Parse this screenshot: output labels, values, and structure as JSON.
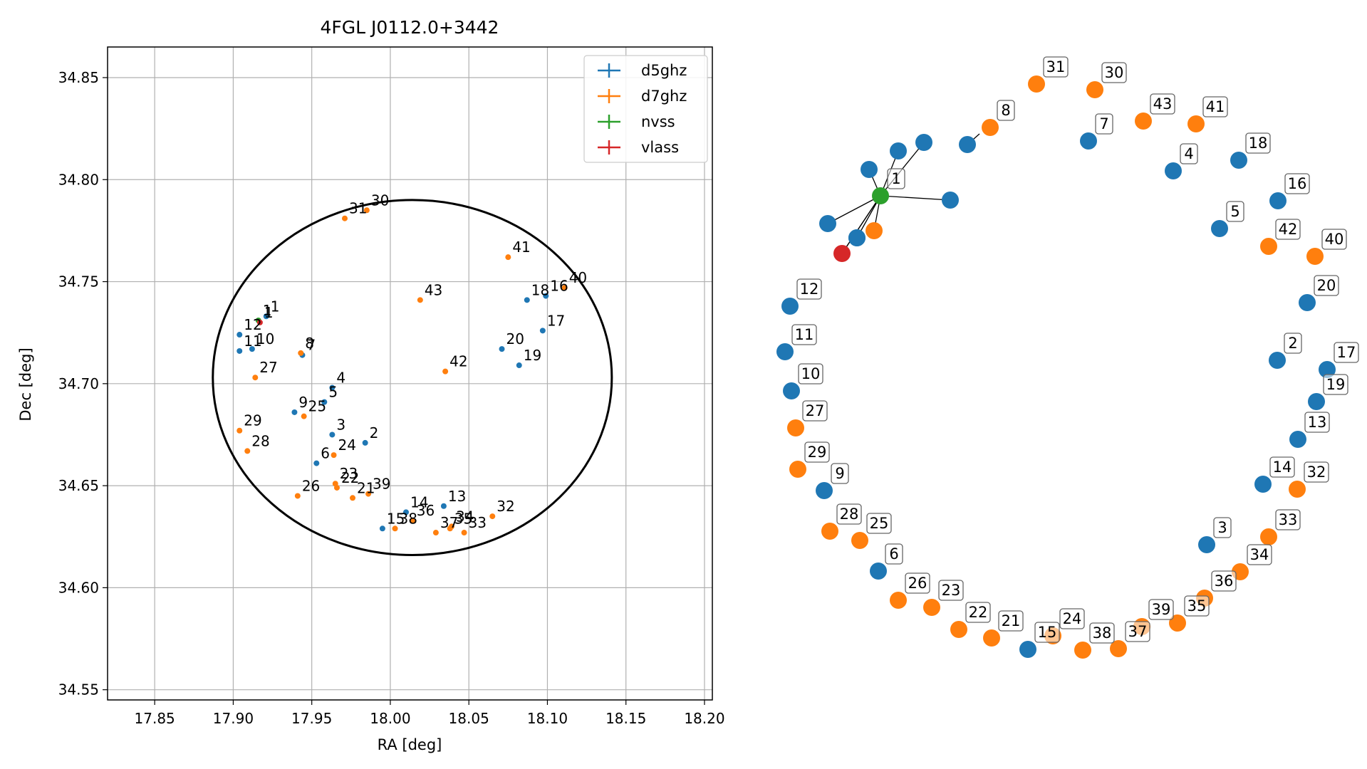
{
  "chart_data": [
    {
      "type": "scatter",
      "title": "4FGL J0112.0+3442",
      "xlabel": "RA [deg]",
      "ylabel": "Dec [deg]",
      "xlim": [
        17.82,
        18.205
      ],
      "ylim": [
        34.545,
        34.865
      ],
      "xticks": [
        "17.85",
        "17.90",
        "17.95",
        "18.00",
        "18.05",
        "18.10",
        "18.15",
        "18.20"
      ],
      "xtick_values": [
        17.85,
        17.9,
        17.95,
        18.0,
        18.05,
        18.1,
        18.15,
        18.2
      ],
      "yticks": [
        "34.55",
        "34.60",
        "34.65",
        "34.70",
        "34.75",
        "34.80",
        "34.85"
      ],
      "ytick_values": [
        34.55,
        34.6,
        34.65,
        34.7,
        34.75,
        34.8,
        34.85
      ],
      "grid": true,
      "legend_position": "top-right",
      "error_ellipse": {
        "center": [
          18.014,
          34.703
        ],
        "ra_semi_axis": 0.127,
        "dec_semi_axis": 0.087,
        "color": "#000000"
      },
      "series": [
        {
          "name": "d5ghz",
          "color": "#1f77b4",
          "points": [
            {
              "label": "1",
              "x": 17.921,
              "y": 34.733
            },
            {
              "label": "2",
              "x": 17.984,
              "y": 34.671
            },
            {
              "label": "3",
              "x": 17.963,
              "y": 34.675
            },
            {
              "label": "4",
              "x": 17.963,
              "y": 34.698
            },
            {
              "label": "5",
              "x": 17.958,
              "y": 34.691
            },
            {
              "label": "6",
              "x": 17.953,
              "y": 34.661
            },
            {
              "label": "7",
              "x": 17.944,
              "y": 34.714
            },
            {
              "label": "9",
              "x": 17.939,
              "y": 34.686
            },
            {
              "label": "10",
              "x": 17.912,
              "y": 34.717
            },
            {
              "label": "11",
              "x": 17.904,
              "y": 34.716
            },
            {
              "label": "12",
              "x": 17.904,
              "y": 34.724
            },
            {
              "label": "13",
              "x": 18.034,
              "y": 34.64
            },
            {
              "label": "14",
              "x": 18.01,
              "y": 34.637
            },
            {
              "label": "15",
              "x": 17.995,
              "y": 34.629
            },
            {
              "label": "16",
              "x": 18.099,
              "y": 34.743
            },
            {
              "label": "17",
              "x": 18.097,
              "y": 34.726
            },
            {
              "label": "18",
              "x": 18.087,
              "y": 34.741
            },
            {
              "label": "19",
              "x": 18.082,
              "y": 34.709
            },
            {
              "label": "20",
              "x": 18.071,
              "y": 34.717
            }
          ]
        },
        {
          "name": "d7ghz",
          "color": "#ff7f0e",
          "points": [
            {
              "label": "8",
              "x": 17.943,
              "y": 34.715
            },
            {
              "label": "21",
              "x": 17.976,
              "y": 34.644
            },
            {
              "label": "22",
              "x": 17.966,
              "y": 34.649
            },
            {
              "label": "23",
              "x": 17.965,
              "y": 34.651
            },
            {
              "label": "24",
              "x": 17.964,
              "y": 34.665
            },
            {
              "label": "25",
              "x": 17.945,
              "y": 34.684
            },
            {
              "label": "26",
              "x": 17.941,
              "y": 34.645
            },
            {
              "label": "27",
              "x": 17.914,
              "y": 34.703
            },
            {
              "label": "28",
              "x": 17.909,
              "y": 34.667
            },
            {
              "label": "29",
              "x": 17.904,
              "y": 34.677
            },
            {
              "label": "30",
              "x": 17.985,
              "y": 34.785
            },
            {
              "label": "31",
              "x": 17.971,
              "y": 34.781
            },
            {
              "label": "32",
              "x": 18.065,
              "y": 34.635
            },
            {
              "label": "33",
              "x": 18.047,
              "y": 34.627
            },
            {
              "label": "34",
              "x": 18.039,
              "y": 34.63
            },
            {
              "label": "35",
              "x": 18.038,
              "y": 34.629
            },
            {
              "label": "36",
              "x": 18.014,
              "y": 34.633
            },
            {
              "label": "37",
              "x": 18.029,
              "y": 34.627
            },
            {
              "label": "38",
              "x": 18.003,
              "y": 34.629
            },
            {
              "label": "39",
              "x": 17.986,
              "y": 34.646
            },
            {
              "label": "40",
              "x": 18.111,
              "y": 34.747
            },
            {
              "label": "41",
              "x": 18.075,
              "y": 34.762
            },
            {
              "label": "42",
              "x": 18.035,
              "y": 34.706
            },
            {
              "label": "43",
              "x": 18.019,
              "y": 34.741
            }
          ]
        },
        {
          "name": "nvss",
          "color": "#2ca02c",
          "points": [
            {
              "label": "1",
              "x": 17.916,
              "y": 34.731
            }
          ]
        },
        {
          "name": "vlass",
          "color": "#d62728",
          "points": [
            {
              "label": "1",
              "x": 17.917,
              "y": 34.73
            }
          ]
        }
      ]
    },
    {
      "type": "network",
      "colors": {
        "d5ghz": "#1f77b4",
        "d7ghz": "#ff7f0e",
        "nvss": "#2ca02c",
        "vlass": "#d62728"
      },
      "labeled_nodes": [
        {
          "label": "31",
          "group": "d7ghz"
        },
        {
          "label": "30",
          "group": "d7ghz"
        },
        {
          "label": "8",
          "group": "d7ghz"
        },
        {
          "label": "7",
          "group": "d5ghz"
        },
        {
          "label": "43",
          "group": "d7ghz"
        },
        {
          "label": "41",
          "group": "d7ghz"
        },
        {
          "label": "4",
          "group": "d5ghz"
        },
        {
          "label": "18",
          "group": "d5ghz"
        },
        {
          "label": "1",
          "group": "nvss"
        },
        {
          "label": "16",
          "group": "d5ghz"
        },
        {
          "label": "5",
          "group": "d5ghz"
        },
        {
          "label": "42",
          "group": "d7ghz"
        },
        {
          "label": "40",
          "group": "d7ghz"
        },
        {
          "label": "12",
          "group": "d5ghz"
        },
        {
          "label": "20",
          "group": "d5ghz"
        },
        {
          "label": "11",
          "group": "d5ghz"
        },
        {
          "label": "2",
          "group": "d5ghz"
        },
        {
          "label": "17",
          "group": "d5ghz"
        },
        {
          "label": "10",
          "group": "d5ghz"
        },
        {
          "label": "19",
          "group": "d5ghz"
        },
        {
          "label": "27",
          "group": "d7ghz"
        },
        {
          "label": "13",
          "group": "d5ghz"
        },
        {
          "label": "29",
          "group": "d7ghz"
        },
        {
          "label": "9",
          "group": "d5ghz"
        },
        {
          "label": "14",
          "group": "d5ghz"
        },
        {
          "label": "32",
          "group": "d7ghz"
        },
        {
          "label": "28",
          "group": "d7ghz"
        },
        {
          "label": "25",
          "group": "d7ghz"
        },
        {
          "label": "3",
          "group": "d5ghz"
        },
        {
          "label": "33",
          "group": "d7ghz"
        },
        {
          "label": "6",
          "group": "d5ghz"
        },
        {
          "label": "34",
          "group": "d7ghz"
        },
        {
          "label": "36",
          "group": "d7ghz"
        },
        {
          "label": "26",
          "group": "d7ghz"
        },
        {
          "label": "23",
          "group": "d7ghz"
        },
        {
          "label": "35",
          "group": "d7ghz"
        },
        {
          "label": "39",
          "group": "d7ghz"
        },
        {
          "label": "22",
          "group": "d7ghz"
        },
        {
          "label": "21",
          "group": "d7ghz"
        },
        {
          "label": "37",
          "group": "d7ghz"
        },
        {
          "label": "24",
          "group": "d7ghz"
        },
        {
          "label": "15",
          "group": "d5ghz"
        },
        {
          "label": "38",
          "group": "d7ghz"
        }
      ],
      "unlabeled_nodes": [
        {
          "group": "d5ghz"
        },
        {
          "group": "d5ghz"
        },
        {
          "group": "d5ghz"
        },
        {
          "group": "d5ghz"
        },
        {
          "group": "d5ghz"
        },
        {
          "group": "d5ghz"
        },
        {
          "group": "d5ghz"
        },
        {
          "group": "d7ghz"
        },
        {
          "group": "vlass"
        }
      ]
    }
  ]
}
